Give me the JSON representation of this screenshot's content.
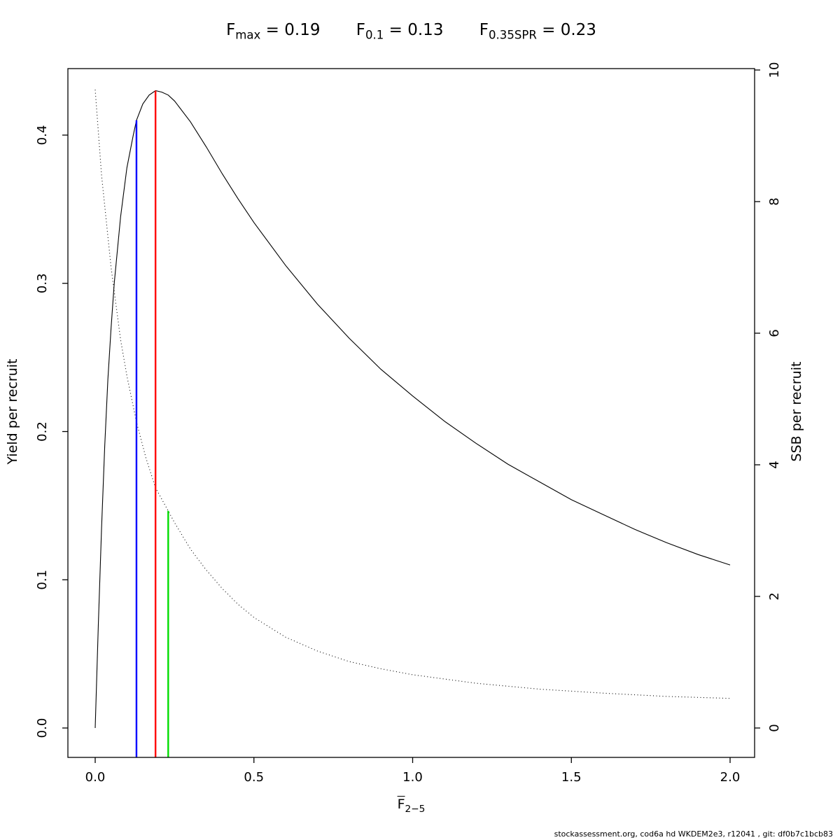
{
  "chart_data": {
    "type": "line",
    "title_items": [
      {
        "base": "F",
        "sub": "max",
        "eq": " = 0.19"
      },
      {
        "base": "F",
        "sub": "0.1",
        "eq": " = 0.13"
      },
      {
        "base": "F",
        "sub": "0.35SPR",
        "eq": " = 0.23"
      }
    ],
    "x_axis": {
      "label_base": "F",
      "label_sub": "2−5",
      "range": [
        0,
        2
      ],
      "tick_values": [
        0,
        0.5,
        1,
        1.5,
        2
      ],
      "ticks": [
        "0.0",
        "0.5",
        "1.0",
        "1.5",
        "2.0"
      ]
    },
    "y_left_axis": {
      "label": "Yield per recruit",
      "range": [
        0,
        0.4
      ],
      "tick_values": [
        0,
        0.1,
        0.2,
        0.3,
        0.4
      ],
      "ticks": [
        "0.0",
        "0.1",
        "0.2",
        "0.3",
        "0.4"
      ]
    },
    "y_right_axis": {
      "label": "SSB per recruit",
      "range": [
        0,
        10
      ],
      "tick_values": [
        0,
        2,
        4,
        6,
        8,
        10
      ],
      "ticks": [
        "0",
        "2",
        "4",
        "6",
        "8",
        "10"
      ]
    },
    "series": [
      {
        "name": "yield_per_recruit",
        "axis": "left",
        "style": "solid",
        "color": "#000000",
        "x": [
          0,
          0.01,
          0.02,
          0.03,
          0.04,
          0.05,
          0.06,
          0.08,
          0.1,
          0.12,
          0.13,
          0.15,
          0.17,
          0.19,
          0.21,
          0.23,
          0.25,
          0.3,
          0.35,
          0.4,
          0.45,
          0.5,
          0.6,
          0.7,
          0.8,
          0.9,
          1,
          1.1,
          1.2,
          1.3,
          1.4,
          1.5,
          1.6,
          1.7,
          1.8,
          1.9,
          2
        ],
        "y": [
          0,
          0.07,
          0.135,
          0.19,
          0.235,
          0.27,
          0.3,
          0.345,
          0.378,
          0.4,
          0.41,
          0.421,
          0.427,
          0.43,
          0.429,
          0.427,
          0.423,
          0.409,
          0.392,
          0.374,
          0.357,
          0.341,
          0.312,
          0.286,
          0.263,
          0.242,
          0.224,
          0.207,
          0.192,
          0.178,
          0.166,
          0.154,
          0.144,
          0.134,
          0.125,
          0.117,
          0.11
        ]
      },
      {
        "name": "ssb_per_recruit",
        "axis": "right",
        "style": "dotted",
        "color": "#000000",
        "x": [
          0,
          0.02,
          0.05,
          0.08,
          0.1,
          0.13,
          0.16,
          0.19,
          0.23,
          0.25,
          0.3,
          0.35,
          0.4,
          0.45,
          0.5,
          0.6,
          0.7,
          0.8,
          0.9,
          1,
          1.2,
          1.4,
          1.6,
          1.8,
          2
        ],
        "y": [
          9.7,
          8.4,
          7.0,
          5.9,
          5.35,
          4.65,
          4.1,
          3.65,
          3.3,
          3.12,
          2.72,
          2.4,
          2.12,
          1.88,
          1.68,
          1.38,
          1.17,
          1.01,
          0.9,
          0.81,
          0.68,
          0.59,
          0.53,
          0.48,
          0.45
        ]
      }
    ],
    "reference_lines": [
      {
        "name": "F0.1",
        "x": 0.13,
        "top": 0.41,
        "axis": "left",
        "color": "#0000ff"
      },
      {
        "name": "Fmax",
        "x": 0.19,
        "top": 0.43,
        "axis": "left",
        "color": "#ff0000"
      },
      {
        "name": "F0.35SPR",
        "x": 0.23,
        "top": 3.3,
        "axis": "right",
        "color": "#00dd00"
      }
    ],
    "grid": false,
    "legend": "none"
  },
  "footer": {
    "text": "stockassessment.org, cod6a hd WKDEM2e3, r12041 , git: df0b7c1bcb83"
  }
}
